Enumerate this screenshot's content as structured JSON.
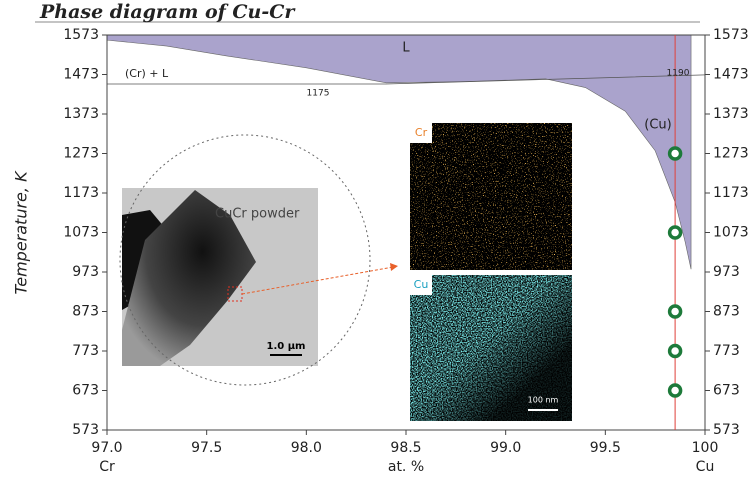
{
  "chart_data": {
    "type": "phase-diagram",
    "title": "Phase diagram of Cu-Cr",
    "y_label": "Temperature, K",
    "x_label": "at. %",
    "x_end_labels": [
      "Cr",
      "Cu"
    ],
    "xlim": [
      97.0,
      100
    ],
    "ylim": [
      573,
      1573
    ],
    "xticks": [
      {
        "value": 97.0,
        "label": "97.0"
      },
      97.5,
      {
        "value": 98.0,
        "label": "98.0"
      },
      98.5,
      {
        "value": 99.0,
        "label": "99.0"
      },
      99.5,
      100
    ],
    "yticks": [
      573,
      673,
      773,
      873,
      973,
      1073,
      1173,
      1273,
      1373,
      1473,
      1573
    ],
    "liquid_region": {
      "color": "#aaa3cc",
      "x": [
        97.0,
        97.3,
        97.6,
        98.0,
        98.4,
        98.8,
        99.2,
        99.4,
        99.6,
        99.75,
        99.85,
        99.9,
        99.93
      ],
      "values": [
        1560,
        1545,
        1520,
        1490,
        1452,
        1455,
        1462,
        1440,
        1380,
        1280,
        1150,
        1050,
        980
      ]
    },
    "eutectic_line": {
      "color": "#555555",
      "x": [
        97.0,
        98.4,
        100
      ],
      "values": [
        1449,
        1449,
        1472
      ]
    },
    "solvus_line": {
      "color": "#e0403a",
      "x": 99.85
    },
    "points": {
      "color": "#1d7a3a",
      "x": [
        99.85,
        99.85,
        99.85,
        99.85,
        99.85
      ],
      "values": [
        1273,
        1073,
        873,
        773,
        673
      ]
    },
    "annotations": [
      "L",
      "(Cr) + L",
      "1175",
      "1190",
      "(Cu)"
    ],
    "inset_labels": [
      "CuCr powder",
      "1.0 µm",
      "Cr",
      "Cu",
      "100 nm"
    ]
  }
}
